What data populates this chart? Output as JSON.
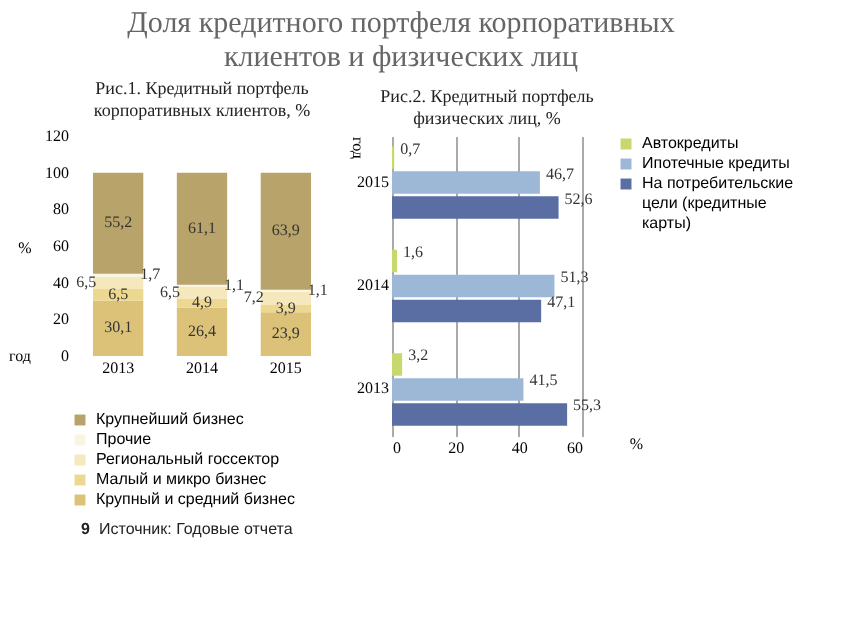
{
  "chart_data": [
    {
      "type": "bar",
      "title": "Доля кредитного портфеля корпоративных клиентов и физических лиц",
      "subtitle": "Рис.1. Кредитный портфель корпоративных клиентов, %",
      "xlabel": "год",
      "ylabel": "%",
      "stacked": true,
      "legend": "bottom",
      "grid": false,
      "categories": [
        "2013",
        "2014",
        "2015"
      ],
      "ylim": [
        0,
        120
      ],
      "yticks": [
        0,
        20,
        40,
        60,
        80,
        100,
        120
      ],
      "series": [
        {
          "name": "Крупный и средний бизнес",
          "color": "#dcc278",
          "values": [
            30.1,
            26.4,
            23.9
          ],
          "value_labels": [
            "30,1",
            "26,4",
            "23,9"
          ]
        },
        {
          "name": "Малый и микро бизнес",
          "color": "#ecd890",
          "values": [
            6.5,
            4.9,
            3.9
          ],
          "value_labels": [
            "6,5",
            "4,9",
            "3,9"
          ]
        },
        {
          "name": "Региональный госсектор",
          "color": "#f4e8bc",
          "values": [
            6.5,
            6.5,
            7.2
          ],
          "value_labels": [
            "6,5",
            "6,5",
            "7,2"
          ]
        },
        {
          "name": "Прочие",
          "color": "#faf5e2",
          "values": [
            1.7,
            1.1,
            1.1
          ],
          "value_labels": [
            "1,7",
            "1,1",
            "1,1"
          ]
        },
        {
          "name": "Крупнейший бизнес",
          "color": "#b8a46a",
          "values": [
            55.2,
            61.1,
            63.9
          ],
          "value_labels": [
            "55,2",
            "61,1",
            "63,9"
          ]
        }
      ],
      "annotations": [
        "9",
        "Источник: Годовые отчета"
      ]
    },
    {
      "type": "bar",
      "title": "Рис.2. Кредитный портфель физических лиц, %",
      "orientation": "horizontal",
      "xlabel": "%",
      "ylabel": "год",
      "legend": "right",
      "grid": "x",
      "categories": [
        "2015",
        "2014",
        "2013"
      ],
      "xlim": [
        0,
        60
      ],
      "xticks": [
        0,
        20,
        40,
        60
      ],
      "series": [
        {
          "name": "Автокредиты",
          "color": "#c9d86c",
          "values": [
            0.7,
            1.6,
            3.2
          ],
          "value_labels": [
            "0,7",
            "1,6",
            "3,2"
          ]
        },
        {
          "name": "Ипотечные кредиты",
          "color": "#9db7d6",
          "values": [
            46.7,
            51.3,
            41.5
          ],
          "value_labels": [
            "46,7",
            "51,3",
            "41,5"
          ]
        },
        {
          "name": "На потребительские цели (кредитные карты)",
          "color": "#5a6ea4",
          "values": [
            52.6,
            47.1,
            55.3
          ],
          "value_labels": [
            "52,6",
            "47,1",
            "55,3"
          ]
        }
      ]
    }
  ]
}
